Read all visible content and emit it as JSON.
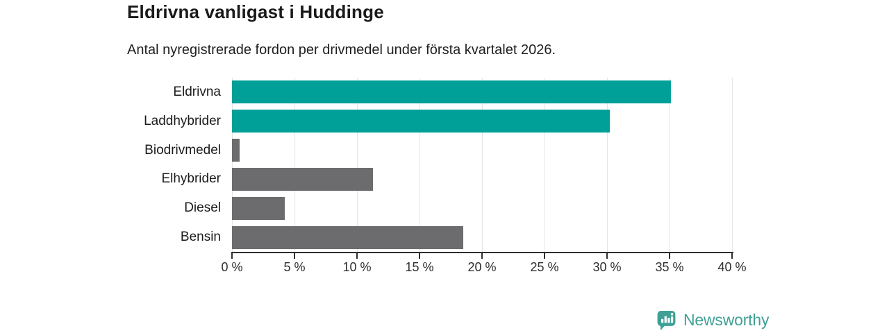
{
  "chart_data": {
    "type": "bar",
    "orientation": "horizontal",
    "title": "Eldrivna vanligast i Huddinge",
    "subtitle": "Antal nyregistrerade fordon per drivmedel under första kvartalet 2026.",
    "categories": [
      "Eldrivna",
      "Laddhybrider",
      "Biodrivmedel",
      "Elhybrider",
      "Diesel",
      "Bensin"
    ],
    "values": [
      35.1,
      30.2,
      0.6,
      11.3,
      4.2,
      18.5
    ],
    "bar_colors": [
      "#00a099",
      "#00a099",
      "#6c6c6e",
      "#6c6c6e",
      "#6c6c6e",
      "#6c6c6e"
    ],
    "xlim": [
      0,
      40
    ],
    "xtick_step": 5,
    "xtick_labels": [
      "0 %",
      "5 %",
      "10 %",
      "15 %",
      "20 %",
      "25 %",
      "30 %",
      "35 %",
      "40 %"
    ],
    "grid": "vertical",
    "legend": "none",
    "unit": "%"
  },
  "colors": {
    "accent_teal": "#00a099",
    "neutral_gray": "#6c6c6e",
    "gridline": "#e4e4e4",
    "axis": "#2e2e2e",
    "text": "#1a1a1a",
    "brand": "#3fa096"
  },
  "branding": {
    "logo_text": "Newsworthy",
    "logo_icon": "bar-chart-speech-bubble-icon"
  }
}
